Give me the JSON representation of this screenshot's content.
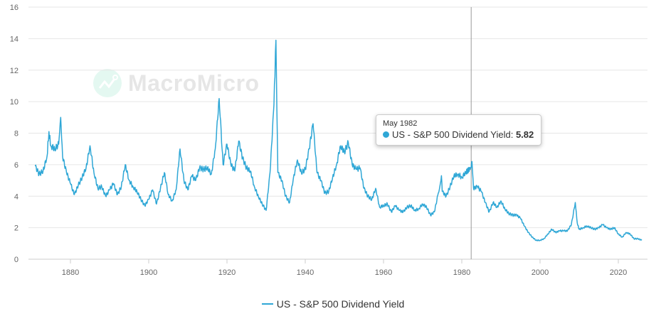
{
  "watermark": "MacroMicro",
  "colors": {
    "series": "#2fa7d6",
    "grid": "#e6e6e6",
    "crosshair": "#999999"
  },
  "tooltip": {
    "date": "May 1982",
    "label": "US - S&P 500 Dividend Yield:",
    "value": "5.82"
  },
  "chart_data": {
    "type": "line",
    "title": "",
    "xlabel": "",
    "ylabel": "",
    "ylim": [
      0,
      16
    ],
    "xlim": [
      1870,
      2027
    ],
    "grid": true,
    "legend_position": "bottom-center",
    "y_ticks": [
      "0",
      "2",
      "4",
      "6",
      "8",
      "10",
      "12",
      "14",
      "16"
    ],
    "x_ticks": [
      "1880",
      "1900",
      "1920",
      "1940",
      "1960",
      "1980",
      "2000",
      "2020"
    ],
    "crosshair_x": 1982.4,
    "series": [
      {
        "name": "US - S&P 500 Dividend Yield",
        "x": [
          1871,
          1872,
          1873,
          1874,
          1874.5,
          1875,
          1876,
          1877,
          1877.5,
          1878,
          1879,
          1880,
          1881,
          1882,
          1883,
          1884,
          1885,
          1886,
          1887,
          1888,
          1889,
          1890,
          1891,
          1892,
          1893,
          1894,
          1895,
          1896,
          1897,
          1898,
          1899,
          1900,
          1901,
          1902,
          1903,
          1904,
          1905,
          1906,
          1907,
          1908,
          1909,
          1910,
          1911,
          1912,
          1913,
          1914,
          1915,
          1916,
          1917,
          1918,
          1919,
          1920,
          1921,
          1922,
          1923,
          1924,
          1925,
          1926,
          1927,
          1928,
          1929,
          1930,
          1931,
          1932,
          1932.5,
          1933,
          1934,
          1935,
          1936,
          1937,
          1938,
          1939,
          1940,
          1941,
          1942,
          1943,
          1944,
          1945,
          1946,
          1947,
          1948,
          1949,
          1950,
          1951,
          1952,
          1953,
          1954,
          1955,
          1956,
          1957,
          1958,
          1959,
          1960,
          1961,
          1962,
          1963,
          1964,
          1965,
          1966,
          1967,
          1968,
          1969,
          1970,
          1971,
          1972,
          1973,
          1974,
          1974.8,
          1975,
          1976,
          1977,
          1978,
          1979,
          1980,
          1981,
          1982.4,
          1982.6,
          1983,
          1984,
          1985,
          1986,
          1987,
          1988,
          1989,
          1990,
          1991,
          1992,
          1993,
          1994,
          1995,
          1996,
          1997,
          1998,
          1999,
          2000,
          2001,
          2002,
          2003,
          2004,
          2005,
          2006,
          2007,
          2008,
          2009,
          2009.5,
          2010,
          2011,
          2012,
          2013,
          2014,
          2015,
          2016,
          2017,
          2018,
          2019,
          2020,
          2021,
          2022,
          2023,
          2024,
          2025,
          2026
        ],
        "values": [
          5.9,
          5.4,
          5.6,
          6.5,
          8.1,
          7.2,
          7.0,
          7.3,
          9.0,
          6.5,
          5.5,
          4.8,
          4.1,
          4.7,
          5.2,
          5.8,
          7.2,
          5.5,
          4.5,
          4.6,
          4.0,
          4.4,
          4.8,
          4.1,
          4.6,
          6.0,
          5.0,
          4.6,
          4.3,
          3.8,
          3.4,
          3.8,
          4.4,
          3.5,
          4.5,
          5.5,
          4.1,
          3.7,
          4.4,
          7.0,
          5.0,
          4.4,
          5.3,
          5.0,
          5.8,
          5.7,
          5.8,
          5.4,
          7.0,
          10.2,
          6.0,
          7.3,
          6.0,
          5.6,
          7.5,
          6.4,
          5.8,
          5.6,
          4.6,
          4.0,
          3.5,
          3.1,
          5.5,
          9.8,
          13.9,
          5.5,
          5.0,
          4.0,
          3.6,
          5.2,
          6.3,
          5.5,
          5.7,
          7.0,
          8.6,
          5.5,
          5.0,
          4.2,
          4.3,
          5.2,
          6.0,
          7.2,
          6.8,
          7.4,
          6.0,
          5.7,
          5.8,
          4.5,
          4.0,
          3.8,
          4.5,
          3.3,
          3.4,
          3.5,
          3.0,
          3.4,
          3.1,
          3.0,
          3.3,
          3.4,
          3.1,
          3.2,
          3.5,
          3.3,
          2.8,
          3.0,
          4.2,
          5.3,
          4.3,
          4.0,
          4.6,
          5.3,
          5.4,
          5.2,
          5.5,
          5.82,
          6.2,
          4.5,
          4.6,
          4.3,
          3.6,
          3.0,
          3.6,
          3.3,
          3.7,
          3.2,
          2.9,
          2.8,
          2.8,
          2.6,
          2.1,
          1.7,
          1.4,
          1.2,
          1.2,
          1.3,
          1.6,
          1.9,
          1.7,
          1.8,
          1.8,
          1.8,
          2.2,
          3.6,
          2.3,
          1.9,
          2.0,
          2.1,
          2.0,
          1.9,
          2.0,
          2.2,
          2.0,
          1.9,
          2.0,
          1.6,
          1.4,
          1.7,
          1.6,
          1.3,
          1.3,
          1.2
        ]
      }
    ]
  }
}
